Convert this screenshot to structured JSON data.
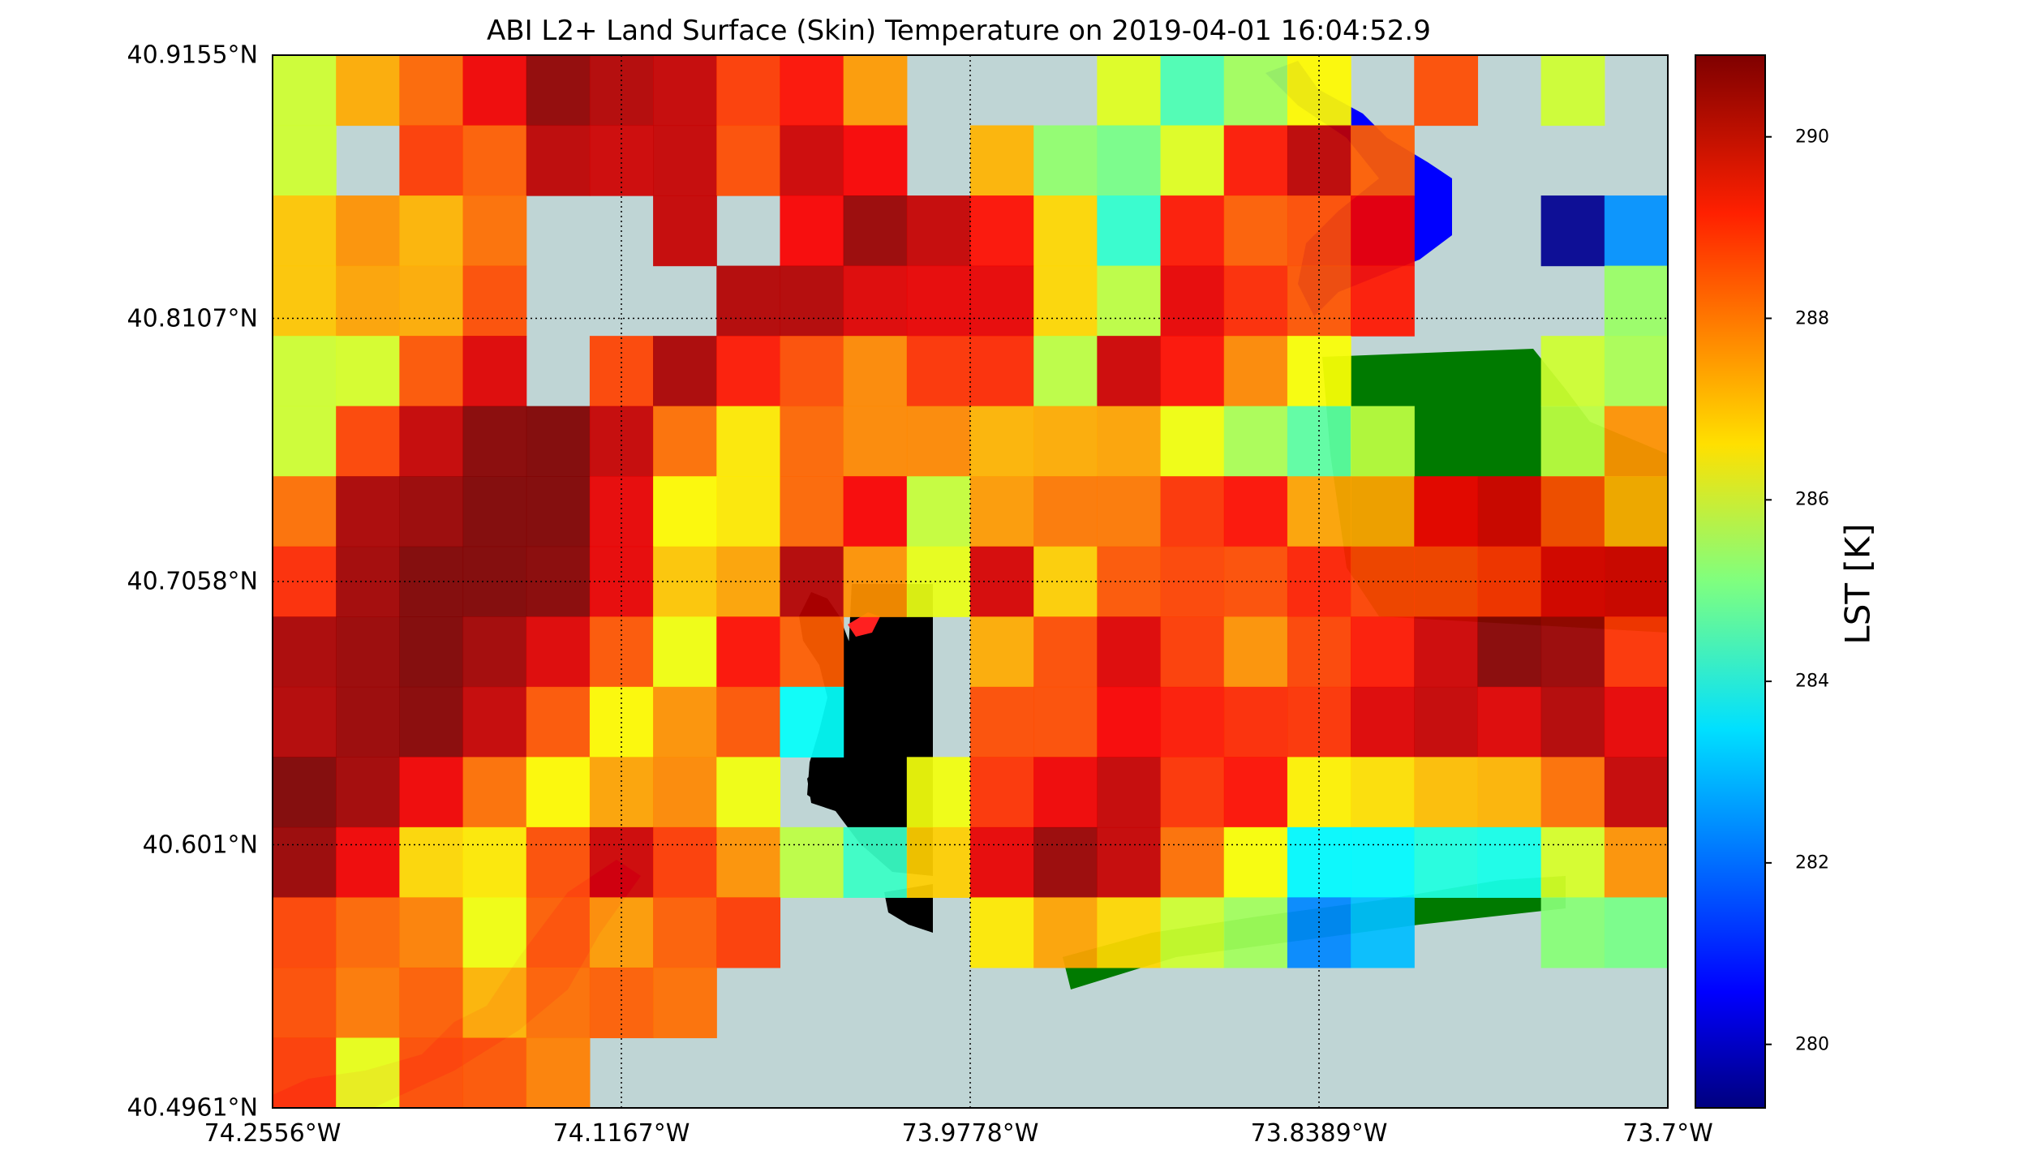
{
  "title": "ABI L2+ Land Surface (Skin) Temperature on 2019-04-01 16:04:52.9",
  "map": {
    "lat_labels": [
      "40.9155°N",
      "40.8107°N",
      "40.7058°N",
      "40.601°N",
      "40.4961°N"
    ],
    "lon_labels": [
      "74.2556°W",
      "74.1167°W",
      "73.9778°W",
      "73.8389°W",
      "73.7°W"
    ],
    "gridlines": true,
    "water_color": "#bfd5d5",
    "land_color": "#000000",
    "park_color": "#007a00",
    "grid_rows": 15,
    "grid_cols": 22,
    "lst_grid": [
      [
        286,
        287.5,
        288.3,
        289.6,
        290.7,
        290.3,
        290.1,
        288.8,
        289.3,
        287.7,
        null,
        null,
        null,
        286.2,
        284.5,
        285.5,
        286.6,
        null,
        288.6,
        null,
        286.0,
        null
      ],
      [
        286.0,
        null,
        288.8,
        288.4,
        290.2,
        290.0,
        290.1,
        288.6,
        290.0,
        289.5,
        null,
        287.4,
        285.3,
        285.0,
        286.2,
        289.2,
        290.2,
        288.4,
        null,
        null,
        null,
        null
      ],
      [
        287.2,
        287.8,
        287.4,
        288.2,
        null,
        null,
        290.1,
        null,
        289.5,
        290.6,
        290.1,
        289.3,
        287.0,
        284.2,
        289.2,
        288.4,
        288.6,
        289.6,
        null,
        null,
        279.5,
        282.4
      ],
      [
        287.2,
        287.6,
        287.5,
        288.6,
        null,
        null,
        null,
        290.3,
        290.3,
        289.8,
        289.7,
        289.7,
        287.0,
        285.8,
        289.7,
        289.0,
        288.5,
        289.2,
        null,
        null,
        null,
        285.4
      ],
      [
        286.0,
        286.1,
        288.5,
        289.8,
        null,
        288.7,
        290.4,
        289.2,
        288.6,
        287.9,
        288.9,
        289.0,
        285.8,
        290.0,
        289.3,
        287.9,
        286.5,
        null,
        null,
        null,
        286.0,
        285.6
      ],
      [
        286.0,
        288.7,
        290.1,
        290.8,
        290.9,
        290.1,
        288.2,
        286.8,
        288.3,
        287.9,
        287.9,
        287.4,
        287.5,
        287.6,
        286.4,
        285.6,
        284.7,
        285.8,
        null,
        null,
        285.8,
        287.8
      ],
      [
        288.2,
        290.4,
        290.6,
        290.9,
        291.0,
        289.7,
        286.6,
        286.8,
        288.3,
        289.5,
        285.9,
        287.7,
        288.1,
        288.1,
        288.9,
        289.3,
        287.6,
        287.6,
        289.6,
        289.9,
        288.6,
        287.5
      ],
      [
        289.0,
        290.5,
        291.1,
        290.9,
        290.8,
        289.7,
        287.2,
        287.6,
        290.3,
        287.8,
        286.3,
        289.9,
        287.1,
        288.5,
        288.7,
        288.6,
        289.1,
        288.7,
        288.7,
        288.9,
        289.8,
        289.9
      ],
      [
        290.4,
        290.6,
        290.9,
        290.5,
        289.8,
        288.5,
        286.4,
        289.3,
        288.4,
        null,
        null,
        287.5,
        288.6,
        289.8,
        288.8,
        287.8,
        288.7,
        289.2,
        290.0,
        290.8,
        290.6,
        288.9
      ],
      [
        290.3,
        290.6,
        290.8,
        290.1,
        288.5,
        286.6,
        287.8,
        288.5,
        283.7,
        null,
        null,
        288.6,
        288.6,
        289.5,
        289.2,
        289.0,
        288.9,
        289.8,
        290.1,
        289.8,
        290.3,
        289.7
      ],
      [
        290.9,
        290.5,
        289.6,
        288.2,
        286.6,
        287.6,
        287.9,
        286.4,
        null,
        null,
        286.4,
        288.9,
        289.6,
        290.1,
        288.9,
        289.3,
        286.7,
        286.9,
        287.3,
        287.4,
        288.2,
        290.1
      ],
      [
        290.6,
        289.6,
        287.0,
        286.8,
        288.6,
        290.0,
        288.8,
        287.8,
        285.8,
        284.3,
        287.1,
        289.7,
        290.6,
        290.1,
        288.2,
        286.5,
        283.6,
        283.6,
        284.0,
        283.9,
        286.1,
        287.8
      ],
      [
        288.7,
        288.3,
        288.0,
        286.4,
        288.4,
        287.7,
        288.4,
        288.8,
        null,
        null,
        null,
        286.8,
        287.6,
        287.0,
        286.0,
        285.5,
        282.3,
        282.9,
        null,
        null,
        285.2,
        285.0
      ],
      [
        288.6,
        288.1,
        288.4,
        287.4,
        288.2,
        288.4,
        288.2,
        null,
        null,
        null,
        null,
        null,
        null,
        null,
        null,
        null,
        null,
        null,
        null,
        null,
        null,
        null
      ],
      [
        288.8,
        286.3,
        288.6,
        288.5,
        288.0,
        null,
        null,
        null,
        null,
        null,
        null,
        null,
        null,
        null,
        null,
        null,
        null,
        null,
        null,
        null,
        null,
        null
      ]
    ]
  },
  "colorbar": {
    "label": "LST [K]",
    "min": 279.3,
    "max": 290.9,
    "ticks": [
      "280",
      "282",
      "284",
      "286",
      "288",
      "290"
    ]
  }
}
